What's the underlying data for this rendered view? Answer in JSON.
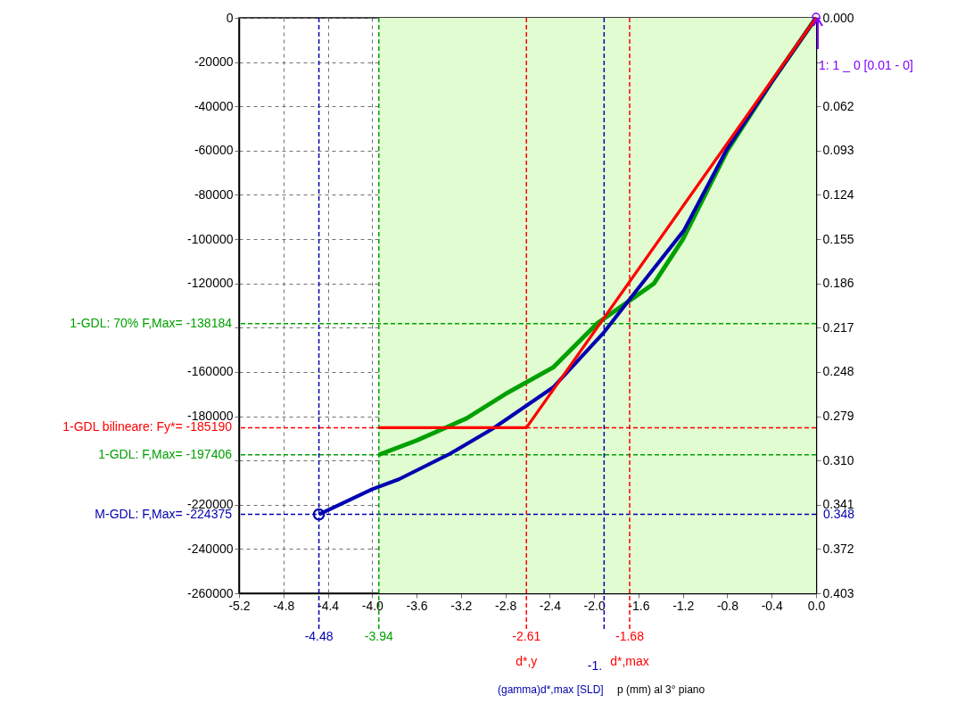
{
  "chart_data": {
    "type": "line",
    "xlim": [
      -5.2,
      0
    ],
    "xticks": [
      -5.2,
      -4.8,
      -4.4,
      {
        "value": -4,
        "label": "-4.0"
      },
      -3.6,
      -3.2,
      -2.8,
      -2.4,
      {
        "value": -2,
        "label": "-2.0"
      },
      -1.6,
      -1.2,
      -0.8,
      -0.4,
      {
        "value": 0,
        "label": "0.0"
      }
    ],
    "ylim": [
      -260000,
      0
    ],
    "yticks": [
      -260000,
      -240000,
      -220000,
      {
        "value": -200000,
        "label": null
      },
      -180000,
      -160000,
      {
        "value": -140000,
        "label": null
      },
      -120000,
      -100000,
      -80000,
      -60000,
      -40000,
      -20000,
      0
    ],
    "y2lim": [
      0.403,
      0
    ],
    "y2ticks": [
      {
        "value": 0,
        "label": "0.000"
      },
      {
        "value": 0.031,
        "label": null
      },
      0.062,
      0.093,
      0.124,
      0.155,
      0.186,
      0.217,
      0.248,
      0.279,
      {
        "value": 0.31,
        "label": "0.310"
      },
      0.341,
      0.372,
      0.403
    ],
    "grid": true,
    "line_style": "solid",
    "series": [
      {
        "color": "#00a000",
        "x": [
          0,
          -0.4,
          -0.8,
          -1.0,
          -1.2,
          -1.46,
          -1.97,
          -2.37,
          -2.8,
          -3.15,
          -3.6,
          -3.94
        ],
        "values": [
          0,
          -29000,
          -60000,
          -80000,
          -100000,
          -120000,
          -138000,
          -158000,
          -170000,
          -181000,
          -191000,
          -197406
        ]
      },
      {
        "color": "#0000b0",
        "x": [
          0,
          -0.4,
          -0.8,
          -1.19,
          -1.6,
          -1.91,
          -2.37,
          -2.91,
          -3.3,
          -3.76,
          -4.0,
          -4.48
        ],
        "values": [
          0,
          -29000,
          -59000,
          -96000,
          -122000,
          -142000,
          -167000,
          -185500,
          -197000,
          -208500,
          -213000,
          -224375
        ]
      },
      {
        "color": "#ff0000",
        "x": [
          0,
          -2.61,
          -3.94
        ],
        "values": [
          0,
          -185190,
          -185190
        ]
      },
      {
        "type": "scatter",
        "color": "#0000b0",
        "marker": "circle",
        "x": [
          -4.48
        ],
        "values": [
          -224375
        ]
      }
    ],
    "bands": [
      {
        "axis": "x",
        "from": -3.94,
        "to": 0,
        "color": "#e0fcd0"
      }
    ],
    "ref_lines": [
      {
        "axis": "y",
        "value": -138184,
        "label": "1-GDL: 70% F,Max= -138184",
        "color": "#00a000",
        "line_style": "dashed"
      },
      {
        "axis": "y",
        "value": -185190,
        "label": "1-GDL bilineare: Fy*= -185190",
        "color": "#ff0000",
        "line_style": "dashed"
      },
      {
        "axis": "y",
        "value": -197406,
        "label": "1-GDL: F,Max= -197406",
        "color": "#00a000",
        "line_style": "dashed"
      },
      {
        "axis": "y",
        "value": -224375,
        "label": "M-GDL: F,Max= -224375",
        "color": "#0000b0",
        "line_style": "dashed"
      },
      {
        "axis": "x",
        "value": -4.48,
        "label": "-4.48",
        "color": "#0000b0",
        "line_style": "dashed"
      },
      {
        "axis": "x",
        "value": -3.94,
        "label": "-3.94",
        "color": "#00a000",
        "line_style": "dashed"
      },
      {
        "axis": "x",
        "value": -2.61,
        "label": "-2.61\nd*,y",
        "color": "#ff0000",
        "line_style": "dashed"
      },
      {
        "axis": "x",
        "value": -1.91,
        "label": null,
        "color": "#0000b0",
        "line_style": "dashed"
      },
      {
        "axis": "x",
        "value": -1.68,
        "label": "-1.68\nd*,max",
        "color": "#ff0000",
        "line_style": "dashed"
      }
    ],
    "annotations": [
      "-1.",
      "(gamma)d*,max [SLD]",
      "p (mm) al 3° piano",
      "1: 1 _ 0 [0.01 - 0]",
      "0.348"
    ]
  }
}
